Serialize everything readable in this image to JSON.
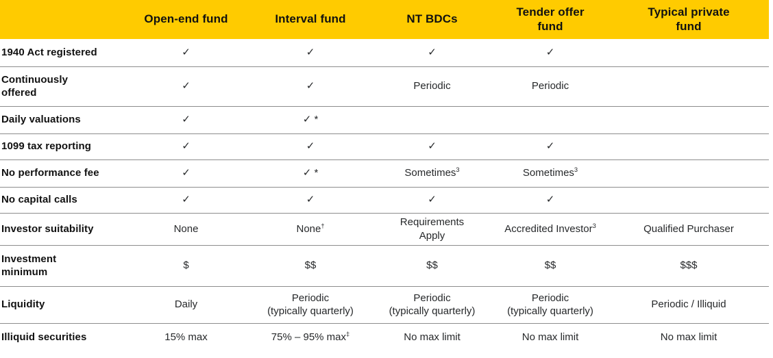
{
  "colors": {
    "header_bg": "#FFCB00",
    "divider": "#8C8C8C",
    "label_text": "#111111",
    "cell_text": "#26282A"
  },
  "table": {
    "columns": [
      "",
      "Open-end fund",
      "Interval fund",
      "NT BDCs",
      "Tender offer\nfund",
      "Typical private\nfund"
    ],
    "rows": [
      {
        "label": "1940 Act registered",
        "cells": [
          "✓",
          "✓",
          "✓",
          "✓",
          ""
        ]
      },
      {
        "label": "Continuously\noffered",
        "cells": [
          "✓",
          "✓",
          "Periodic",
          "Periodic",
          ""
        ]
      },
      {
        "label": "Daily valuations",
        "cells": [
          "✓",
          "✓ *",
          "",
          "",
          ""
        ]
      },
      {
        "label": "1099 tax reporting",
        "cells": [
          "✓",
          "✓",
          "✓",
          "✓",
          ""
        ]
      },
      {
        "label": "No performance fee",
        "cells": [
          "✓",
          "✓ *",
          "Sometimes^3",
          "Sometimes^3",
          ""
        ]
      },
      {
        "label": "No capital calls",
        "cells": [
          "✓",
          "✓",
          "✓",
          "✓",
          ""
        ]
      },
      {
        "label": "Investor suitability",
        "cells": [
          "None",
          "None^†",
          "Requirements\nApply",
          "Accredited Investor^3",
          "Qualified Purchaser"
        ]
      },
      {
        "label": "Investment\nminimum",
        "cells": [
          "$",
          "$$",
          "$$",
          "$$",
          "$$$"
        ]
      },
      {
        "label": "Liquidity",
        "cells": [
          "Daily",
          "Periodic\n(typically quarterly)",
          "Periodic\n(typically quarterly)",
          "Periodic\n(typically quarterly)",
          "Periodic / Illiquid"
        ]
      },
      {
        "label": "Illiquid securities",
        "cells": [
          "15% max",
          "75% – 95% max^‡",
          "No max limit",
          "No max limit",
          "No max limit"
        ]
      }
    ]
  }
}
